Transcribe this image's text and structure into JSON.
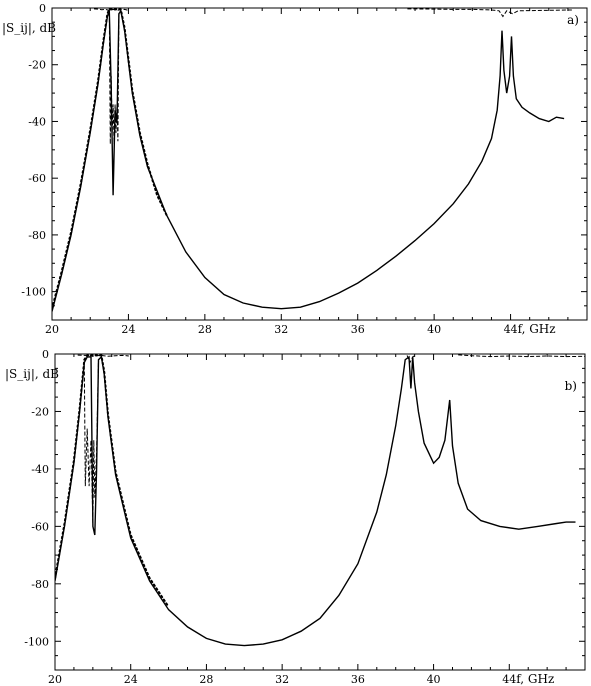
{
  "chart_data": [
    {
      "type": "line",
      "panel": "a)",
      "ylabel": "|S_ij|, dB",
      "xlabel": "f, GHz",
      "xlim": [
        20,
        48
      ],
      "ylim": [
        -110,
        0
      ],
      "xticks": [
        20,
        24,
        28,
        32,
        36,
        40,
        44
      ],
      "yticks": [
        0,
        -20,
        -40,
        -60,
        -80,
        -100
      ],
      "grid": false,
      "series": [
        {
          "style": "solid",
          "x": [
            20,
            20.5,
            21,
            21.5,
            22,
            22.4,
            22.7,
            22.9,
            23.0,
            23.1,
            23.2,
            23.3,
            23.4,
            23.5,
            23.6,
            23.8,
            24.2,
            24.6,
            25,
            26,
            27,
            28,
            29,
            30,
            31,
            32,
            33,
            34,
            35,
            36,
            37,
            38,
            39,
            40,
            41,
            41.8,
            42.5,
            43,
            43.3,
            43.45,
            43.55,
            43.65,
            43.8,
            43.95,
            44.05,
            44.15,
            44.3,
            44.6,
            45,
            45.5,
            46,
            46.4,
            46.8
          ],
          "y": [
            -107,
            -94,
            -80,
            -63,
            -44,
            -27,
            -12,
            -3,
            -1,
            -28,
            -66,
            -36,
            -40,
            -2,
            -1,
            -8,
            -30,
            -45,
            -56,
            -73,
            -86,
            -95,
            -101,
            -104,
            -105.5,
            -106,
            -105.5,
            -103.5,
            -100.5,
            -97,
            -92.5,
            -87.5,
            -82,
            -76,
            -69,
            -62,
            -54,
            -46,
            -36,
            -24,
            -8,
            -22,
            -30,
            -24,
            -10,
            -24,
            -32,
            -35,
            -37,
            -39,
            -40,
            -38.5,
            -39
          ]
        },
        {
          "style": "dashed",
          "x": [
            20.5,
            21,
            21.5,
            22,
            22.4,
            22.7,
            22.9,
            23.0,
            23.05,
            23.1,
            23.15,
            23.2,
            23.25,
            23.3,
            23.35,
            23.4,
            23.45,
            23.5,
            23.6,
            23.8,
            24.2,
            24.6,
            25
          ],
          "y": [
            -94,
            -80,
            -63,
            -44,
            -27,
            -12,
            -3,
            -1,
            -48,
            -24,
            -44,
            -34,
            -48,
            -34,
            -44,
            -34,
            -47,
            -2,
            -1,
            -8,
            -30,
            -45,
            -56
          ]
        },
        {
          "style": "dashed",
          "x": [
            22.2,
            22.4,
            22.6,
            22.8,
            23.0,
            23.2,
            23.4,
            23.6,
            23.8,
            24.0
          ],
          "y": [
            -0.3,
            -0.4,
            -0.6,
            -0.5,
            -0.8,
            -0.5,
            -0.8,
            -0.6,
            -0.5,
            -0.8
          ]
        },
        {
          "style": "dashed",
          "x": [
            38.6,
            39,
            40,
            41,
            42,
            43,
            43.4,
            43.6,
            43.8,
            44.1,
            44.4,
            45,
            46,
            47,
            47.3
          ],
          "y": [
            -0.3,
            -0.3,
            -0.4,
            -0.5,
            -0.5,
            -0.7,
            -1,
            -3,
            -1,
            -2,
            -1,
            -0.9,
            -0.8,
            -0.7,
            -0.7
          ]
        },
        {
          "style": "dotted",
          "x": [
            20,
            20.5,
            21,
            21.5,
            22,
            22.4,
            22.7,
            22.9,
            23.0,
            23.6,
            23.8,
            24.2,
            24.6,
            25,
            25.5,
            26
          ],
          "y": [
            -106,
            -93,
            -79,
            -62,
            -43,
            -26,
            -11,
            -2,
            -0.5,
            -0.5,
            -7,
            -29,
            -44,
            -55,
            -66,
            -73
          ]
        }
      ]
    },
    {
      "type": "line",
      "panel": "b)",
      "ylabel": "|S_ij|, dB",
      "xlabel": "f, GHz",
      "xlim": [
        20,
        48
      ],
      "ylim": [
        -110,
        0
      ],
      "xticks": [
        20,
        24,
        28,
        32,
        36,
        40,
        44
      ],
      "yticks": [
        0,
        -20,
        -40,
        -60,
        -80,
        -100
      ],
      "grid": false,
      "series": [
        {
          "style": "solid",
          "x": [
            20,
            20.5,
            21,
            21.3,
            21.55,
            21.7,
            21.9,
            22.0,
            22.1,
            22.2,
            22.3,
            22.45,
            22.6,
            22.8,
            23.2,
            24,
            25,
            26,
            27,
            28,
            29,
            30,
            31,
            32,
            33,
            34,
            35,
            36,
            37,
            37.5,
            38,
            38.3,
            38.5,
            38.7,
            38.8,
            38.9,
            39.0,
            39.2,
            39.5,
            40,
            40.3,
            40.6,
            40.85,
            41.0,
            41.3,
            41.8,
            42.5,
            43.5,
            44.5,
            45.5,
            46.5,
            47,
            47.5
          ],
          "y": [
            -79,
            -60,
            -38,
            -20,
            -3,
            -1,
            -1,
            -60,
            -63,
            -40,
            -2,
            -1,
            -7,
            -22,
            -42,
            -64,
            -79,
            -89,
            -95,
            -99,
            -101,
            -101.5,
            -101,
            -99.5,
            -96.5,
            -92,
            -84,
            -73,
            -55,
            -42,
            -25,
            -12,
            -2,
            -1,
            -12,
            -1,
            -10,
            -20,
            -31,
            -38,
            -36,
            -30,
            -16,
            -32,
            -45,
            -54,
            -58,
            -60,
            -61,
            -60,
            -59,
            -58.5,
            -58.5
          ]
        },
        {
          "style": "dashed",
          "x": [
            20.5,
            21,
            21.3,
            21.55,
            21.6,
            21.7,
            21.8,
            21.9,
            22.0,
            22.05,
            22.1,
            22.2,
            22.3,
            22.45,
            22.6,
            22.8
          ],
          "y": [
            -60,
            -38,
            -20,
            -3,
            -46,
            -26,
            -46,
            -30,
            -59,
            -30,
            -50,
            -34,
            -2,
            -1,
            -7,
            -22
          ]
        },
        {
          "style": "dashed",
          "x": [
            21.2,
            21.6,
            22,
            22.4,
            22.8,
            23.2,
            23.6,
            23.9
          ],
          "y": [
            -0.4,
            -0.5,
            -0.7,
            -0.5,
            -0.8,
            -0.6,
            -0.5,
            -0.7
          ]
        },
        {
          "style": "dashed",
          "x": [
            38.6,
            38.75,
            38.9,
            39.0
          ],
          "y": [
            -0.5,
            -3,
            -1,
            -0.6
          ]
        },
        {
          "style": "dashed",
          "x": [
            41.3,
            42,
            43,
            44,
            45,
            46,
            47,
            48
          ],
          "y": [
            -0.3,
            -0.6,
            -0.9,
            -0.7,
            -0.9,
            -0.7,
            -0.9,
            -0.8
          ]
        },
        {
          "style": "dotted",
          "x": [
            20,
            20.5,
            21,
            21.3,
            21.55,
            21.7,
            22.3,
            22.45,
            22.6,
            22.8,
            23.2,
            24,
            25,
            26
          ],
          "y": [
            -78,
            -59,
            -37,
            -19,
            -2,
            -0.5,
            -0.5,
            -0.5,
            -6,
            -21,
            -41,
            -63,
            -78,
            -88
          ]
        }
      ]
    }
  ]
}
